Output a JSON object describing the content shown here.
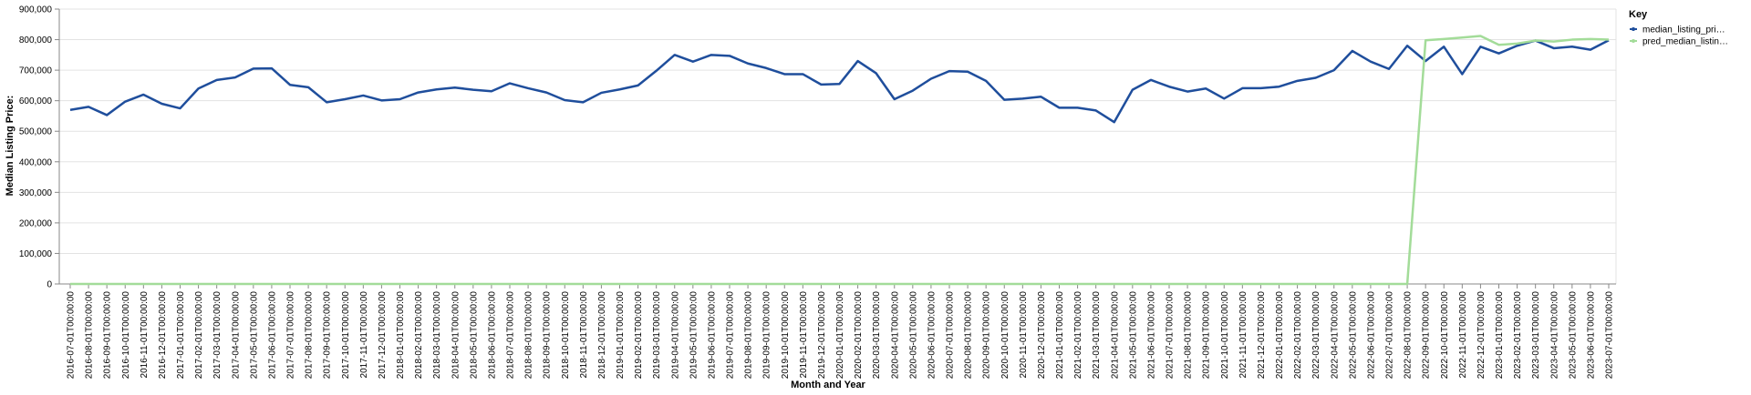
{
  "chart_data": {
    "type": "line",
    "xlabel": "Month and Year",
    "ylabel": "Median Listing Price:",
    "ylim": [
      0,
      900000
    ],
    "y_ticks": [
      0,
      100000,
      200000,
      300000,
      400000,
      500000,
      600000,
      700000,
      800000,
      900000
    ],
    "y_tick_labels": [
      "0",
      "100,000",
      "200,000",
      "300,000",
      "400,000",
      "500,000",
      "600,000",
      "700,000",
      "800,000",
      "900,000"
    ],
    "grid": true,
    "legend": {
      "title": "Key",
      "placement": "top-right",
      "entries": [
        {
          "label": "median_listing_pri…",
          "color": "#1f4e9c"
        },
        {
          "label": "pred_median_listin…",
          "color": "#a3dc99"
        }
      ]
    },
    "x": [
      "2016-07-01T00:00:00",
      "2016-08-01T00:00:00",
      "2016-09-01T00:00:00",
      "2016-10-01T00:00:00",
      "2016-11-01T00:00:00",
      "2016-12-01T00:00:00",
      "2017-01-01T00:00:00",
      "2017-02-01T00:00:00",
      "2017-03-01T00:00:00",
      "2017-04-01T00:00:00",
      "2017-05-01T00:00:00",
      "2017-06-01T00:00:00",
      "2017-07-01T00:00:00",
      "2017-08-01T00:00:00",
      "2017-09-01T00:00:00",
      "2017-10-01T00:00:00",
      "2017-11-01T00:00:00",
      "2017-12-01T00:00:00",
      "2018-01-01T00:00:00",
      "2018-02-01T00:00:00",
      "2018-03-01T00:00:00",
      "2018-04-01T00:00:00",
      "2018-05-01T00:00:00",
      "2018-06-01T00:00:00",
      "2018-07-01T00:00:00",
      "2018-08-01T00:00:00",
      "2018-09-01T00:00:00",
      "2018-10-01T00:00:00",
      "2018-11-01T00:00:00",
      "2018-12-01T00:00:00",
      "2019-01-01T00:00:00",
      "2019-02-01T00:00:00",
      "2019-03-01T00:00:00",
      "2019-04-01T00:00:00",
      "2019-05-01T00:00:00",
      "2019-06-01T00:00:00",
      "2019-07-01T00:00:00",
      "2019-08-01T00:00:00",
      "2019-09-01T00:00:00",
      "2019-10-01T00:00:00",
      "2019-11-01T00:00:00",
      "2019-12-01T00:00:00",
      "2020-01-01T00:00:00",
      "2020-02-01T00:00:00",
      "2020-03-01T00:00:00",
      "2020-04-01T00:00:00",
      "2020-05-01T00:00:00",
      "2020-06-01T00:00:00",
      "2020-07-01T00:00:00",
      "2020-08-01T00:00:00",
      "2020-09-01T00:00:00",
      "2020-10-01T00:00:00",
      "2020-11-01T00:00:00",
      "2020-12-01T00:00:00",
      "2021-01-01T00:00:00",
      "2021-02-01T00:00:00",
      "2021-03-01T00:00:00",
      "2021-04-01T00:00:00",
      "2021-05-01T00:00:00",
      "2021-06-01T00:00:00",
      "2021-07-01T00:00:00",
      "2021-08-01T00:00:00",
      "2021-09-01T00:00:00",
      "2021-10-01T00:00:00",
      "2021-11-01T00:00:00",
      "2021-12-01T00:00:00",
      "2022-01-01T00:00:00",
      "2022-02-01T00:00:00",
      "2022-03-01T00:00:00",
      "2022-04-01T00:00:00",
      "2022-05-01T00:00:00",
      "2022-06-01T00:00:00",
      "2022-07-01T00:00:00",
      "2022-08-01T00:00:00",
      "2022-09-01T00:00:00",
      "2022-10-01T00:00:00",
      "2022-11-01T00:00:00",
      "2022-12-01T00:00:00",
      "2023-01-01T00:00:00",
      "2023-02-01T00:00:00",
      "2023-03-01T00:00:00",
      "2023-04-01T00:00:00",
      "2023-05-01T00:00:00",
      "2023-06-01T00:00:00",
      "2023-07-01T00:00:00"
    ],
    "series": [
      {
        "name": "median_listing_pri…",
        "color": "#1f4e9c",
        "values": [
          570000,
          580000,
          553000,
          597000,
          620000,
          590000,
          575000,
          640000,
          668000,
          676000,
          705000,
          706000,
          652000,
          644000,
          595000,
          605000,
          617000,
          601000,
          605000,
          627000,
          637000,
          643000,
          636000,
          631000,
          657000,
          641000,
          627000,
          602000,
          595000,
          626000,
          637000,
          650000,
          698000,
          750000,
          728000,
          750000,
          747000,
          722000,
          707000,
          687000,
          687000,
          653000,
          655000,
          730000,
          690000,
          605000,
          633000,
          672000,
          697000,
          695000,
          665000,
          603000,
          607000,
          613000,
          577000,
          577000,
          568000,
          530000,
          636000,
          668000,
          646000,
          630000,
          640000,
          607000,
          641000,
          641000,
          646000,
          665000,
          675000,
          700000,
          763000,
          728000,
          704000,
          780000,
          730000,
          777000,
          687000,
          777000,
          755000,
          780000,
          797000,
          772000,
          777000,
          767000,
          798000
        ]
      },
      {
        "name": "pred_median_listin…",
        "color": "#a3dc99",
        "values": [
          0,
          0,
          0,
          0,
          0,
          0,
          0,
          0,
          0,
          0,
          0,
          0,
          0,
          0,
          0,
          0,
          0,
          0,
          0,
          0,
          0,
          0,
          0,
          0,
          0,
          0,
          0,
          0,
          0,
          0,
          0,
          0,
          0,
          0,
          0,
          0,
          0,
          0,
          0,
          0,
          0,
          0,
          0,
          0,
          0,
          0,
          0,
          0,
          0,
          0,
          0,
          0,
          0,
          0,
          0,
          0,
          0,
          0,
          0,
          0,
          0,
          0,
          0,
          0,
          0,
          0,
          0,
          0,
          0,
          0,
          0,
          0,
          0,
          0,
          798000,
          802000,
          807000,
          812000,
          783000,
          787000,
          797000,
          794000,
          800000,
          802000,
          800000
        ]
      }
    ]
  }
}
